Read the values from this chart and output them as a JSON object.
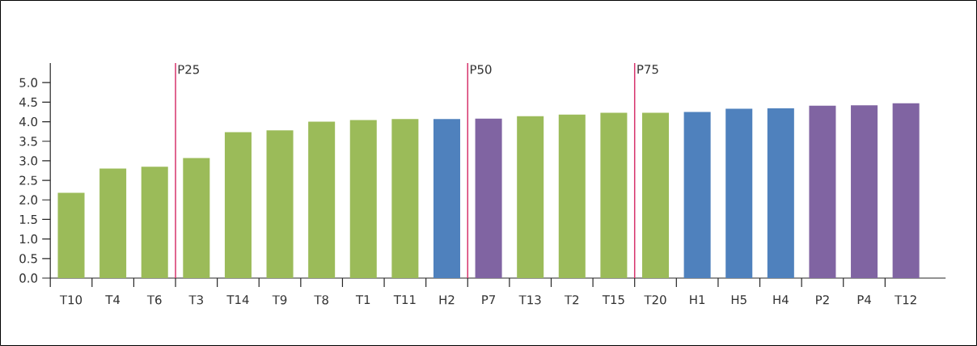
{
  "chart_data": {
    "type": "bar",
    "categories": [
      "T10",
      "T4",
      "T6",
      "T3",
      "T14",
      "T9",
      "T8",
      "T1",
      "T11",
      "H2",
      "P7",
      "T13",
      "T2",
      "T15",
      "T20",
      "H1",
      "H5",
      "H4",
      "P2",
      "P4",
      "T12"
    ],
    "values": [
      2.18,
      2.8,
      2.85,
      3.07,
      3.73,
      3.78,
      4.0,
      4.04,
      4.07,
      4.07,
      4.08,
      4.14,
      4.18,
      4.23,
      4.23,
      4.25,
      4.33,
      4.34,
      4.41,
      4.42,
      4.47
    ],
    "colors": [
      "#9bbb59",
      "#9bbb59",
      "#9bbb59",
      "#9bbb59",
      "#9bbb59",
      "#9bbb59",
      "#9bbb59",
      "#9bbb59",
      "#9bbb59",
      "#4f81bd",
      "#8064a2",
      "#9bbb59",
      "#9bbb59",
      "#9bbb59",
      "#9bbb59",
      "#4f81bd",
      "#4f81bd",
      "#4f81bd",
      "#8064a2",
      "#8064a2",
      "#8064a2"
    ],
    "ylim": [
      0,
      5.5
    ],
    "yticks": [
      {
        "value": 0,
        "label": "0.0"
      },
      {
        "value": 0.5,
        "label": "0.5"
      },
      {
        "value": 1,
        "label": "1.0"
      },
      {
        "value": 1.5,
        "label": "1.5"
      },
      {
        "value": 2,
        "label": "2.0"
      },
      {
        "value": 2.5,
        "label": "2.5"
      },
      {
        "value": 3,
        "label": "3.0"
      },
      {
        "value": 3.5,
        "label": "3.5"
      },
      {
        "value": 4,
        "label": "4.0"
      },
      {
        "value": 4.5,
        "label": "4.5"
      },
      {
        "value": 5,
        "label": "5.0"
      }
    ],
    "annotations": [
      "P25",
      "P50",
      "P75"
    ]
  }
}
